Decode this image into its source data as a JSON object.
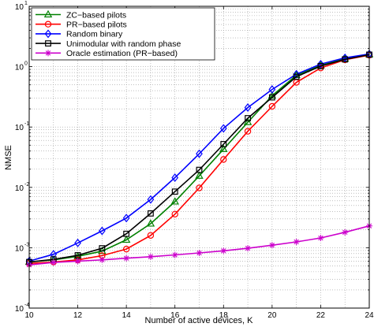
{
  "chart_data": {
    "type": "line",
    "title": "",
    "xlabel": "Number of active devices, K",
    "ylabel": "NMSE",
    "y_scale": "log",
    "xlim": [
      10,
      24
    ],
    "ylim": [
      0.0001,
      10
    ],
    "x_ticks": [
      "10",
      "12",
      "14",
      "16",
      "18",
      "20",
      "22",
      "24"
    ],
    "y_tick_values": [
      0.0001,
      0.001,
      0.01,
      0.1,
      1,
      10
    ],
    "y_tick_exponents": [
      "-4",
      "-3",
      "-2",
      "-1",
      "0",
      "1"
    ],
    "y_tick_base": "10",
    "grid": true,
    "legend_position": "top-left",
    "x": [
      10,
      11,
      12,
      13,
      14,
      15,
      16,
      17,
      18,
      19,
      20,
      21,
      22,
      23,
      24
    ],
    "series": [
      {
        "name": "ZC−based pilots",
        "color": "#008000",
        "marker": "triangle",
        "values": [
          0.00058,
          0.00063,
          0.00072,
          0.00088,
          0.00135,
          0.0025,
          0.0058,
          0.0155,
          0.043,
          0.12,
          0.33,
          0.72,
          1.05,
          1.35,
          1.6
        ]
      },
      {
        "name": "PR−based pilots",
        "color": "#ff0000",
        "marker": "circle",
        "values": [
          0.00055,
          0.00058,
          0.00063,
          0.00074,
          0.00095,
          0.0016,
          0.0036,
          0.0098,
          0.029,
          0.085,
          0.22,
          0.55,
          0.95,
          1.3,
          1.55
        ]
      },
      {
        "name": "Random binary",
        "color": "#0000ff",
        "marker": "diamond",
        "values": [
          0.0006,
          0.00078,
          0.0012,
          0.0019,
          0.0031,
          0.0063,
          0.0145,
          0.036,
          0.095,
          0.21,
          0.42,
          0.75,
          1.1,
          1.4,
          1.62
        ]
      },
      {
        "name": "Unimodular with random phase",
        "color": "#000000",
        "marker": "square",
        "values": [
          0.00058,
          0.00064,
          0.00075,
          0.00098,
          0.0017,
          0.0037,
          0.0085,
          0.0195,
          0.052,
          0.14,
          0.31,
          0.68,
          1.02,
          1.32,
          1.58
        ]
      },
      {
        "name": "Oracle estimation (PR−based)",
        "color": "#cc00cc",
        "marker": "star",
        "values": [
          0.00052,
          0.00057,
          0.0006,
          0.00063,
          0.00067,
          0.00071,
          0.00076,
          0.00082,
          0.00089,
          0.00098,
          0.0011,
          0.00125,
          0.00145,
          0.0018,
          0.0023
        ]
      }
    ]
  }
}
